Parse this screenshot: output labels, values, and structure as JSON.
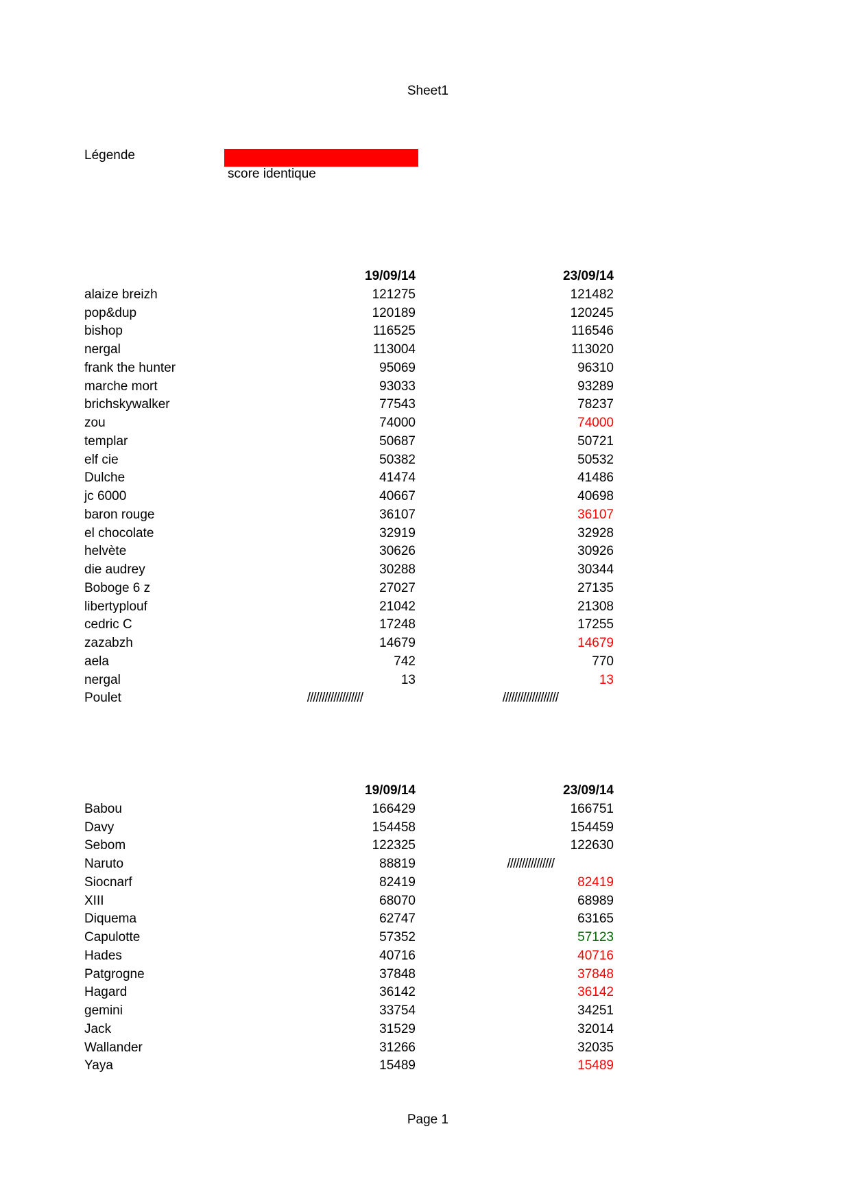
{
  "header": {
    "title": "Sheet1"
  },
  "legend": {
    "label": "Légende",
    "text": "score identique",
    "color": "#ff0000"
  },
  "colors": {
    "same_score": "#ff0000",
    "lower_score": "#006600",
    "normal": "#000000"
  },
  "tables": [
    {
      "columns": [
        "19/09/14",
        "23/09/14"
      ],
      "rows": [
        {
          "name": "alaize breizh",
          "v1": "121275",
          "v2": "121482",
          "s2": "normal"
        },
        {
          "name": "pop&dup",
          "v1": "120189",
          "v2": "120245",
          "s2": "normal"
        },
        {
          "name": "bishop",
          "v1": "116525",
          "v2": "116546",
          "s2": "normal"
        },
        {
          "name": "nergal",
          "v1": "113004",
          "v2": "113020",
          "s2": "normal"
        },
        {
          "name": "frank the hunter",
          "v1": "95069",
          "v2": "96310",
          "s2": "normal"
        },
        {
          "name": "marche mort",
          "v1": "93033",
          "v2": "93289",
          "s2": "normal"
        },
        {
          "name": "brichskywalker",
          "v1": "77543",
          "v2": "78237",
          "s2": "normal"
        },
        {
          "name": "zou",
          "v1": "74000",
          "v2": "74000",
          "s2": "same_score"
        },
        {
          "name": "templar",
          "v1": "50687",
          "v2": "50721",
          "s2": "normal"
        },
        {
          "name": "elf cie",
          "v1": "50382",
          "v2": "50532",
          "s2": "normal"
        },
        {
          "name": "Dulche",
          "v1": "41474",
          "v2": "41486",
          "s2": "normal"
        },
        {
          "name": "jc 6000",
          "v1": "40667",
          "v2": "40698",
          "s2": "normal"
        },
        {
          "name": "baron rouge",
          "v1": "36107",
          "v2": "36107",
          "s2": "same_score"
        },
        {
          "name": "el chocolate",
          "v1": "32919",
          "v2": "32928",
          "s2": "normal"
        },
        {
          "name": "helvète",
          "v1": "30626",
          "v2": "30926",
          "s2": "normal"
        },
        {
          "name": "die audrey",
          "v1": "30288",
          "v2": "30344",
          "s2": "normal"
        },
        {
          "name": "Boboge 6 z",
          "v1": "27027",
          "v2": "27135",
          "s2": "normal"
        },
        {
          "name": "libertyplouf",
          "v1": "21042",
          "v2": "21308",
          "s2": "normal"
        },
        {
          "name": "cedric C",
          "v1": "17248",
          "v2": "17255",
          "s2": "normal"
        },
        {
          "name": "zazabzh",
          "v1": "14679",
          "v2": "14679",
          "s2": "same_score"
        },
        {
          "name": "aela",
          "v1": "742",
          "v2": "770",
          "s2": "normal"
        },
        {
          "name": "nergal",
          "v1": "13",
          "v2": "13",
          "s2": "same_score"
        },
        {
          "name": "Poulet",
          "v1": "///////////////////",
          "v2": "///////////////////",
          "s2": "normal"
        }
      ]
    },
    {
      "columns": [
        "19/09/14",
        "23/09/14"
      ],
      "rows": [
        {
          "name": "Babou",
          "v1": "166429",
          "v2": "166751",
          "s2": "normal"
        },
        {
          "name": "Davy",
          "v1": "154458",
          "v2": "154459",
          "s2": "normal"
        },
        {
          "name": "Sebom",
          "v1": "122325",
          "v2": "122630",
          "s2": "normal"
        },
        {
          "name": "Naruto",
          "v1": "88819",
          "v2": "////////////////",
          "s2": "normal"
        },
        {
          "name": "Siocnarf",
          "v1": "82419",
          "v2": "82419",
          "s2": "same_score"
        },
        {
          "name": "XIII",
          "v1": "68070",
          "v2": "68989",
          "s2": "normal"
        },
        {
          "name": "Diquema",
          "v1": "62747",
          "v2": "63165",
          "s2": "normal"
        },
        {
          "name": "Capulotte",
          "v1": "57352",
          "v2": "57123",
          "s2": "lower_score"
        },
        {
          "name": "Hades",
          "v1": "40716",
          "v2": "40716",
          "s2": "same_score"
        },
        {
          "name": "Patgrogne",
          "v1": "37848",
          "v2": "37848",
          "s2": "same_score"
        },
        {
          "name": "Hagard",
          "v1": "36142",
          "v2": "36142",
          "s2": "same_score"
        },
        {
          "name": "gemini",
          "v1": "33754",
          "v2": "34251",
          "s2": "normal"
        },
        {
          "name": "Jack",
          "v1": "31529",
          "v2": "32014",
          "s2": "normal"
        },
        {
          "name": "Wallander",
          "v1": "31266",
          "v2": "32035",
          "s2": "normal"
        },
        {
          "name": "Yaya",
          "v1": "15489",
          "v2": "15489",
          "s2": "same_score"
        }
      ]
    }
  ],
  "footer": {
    "page": "Page 1"
  }
}
